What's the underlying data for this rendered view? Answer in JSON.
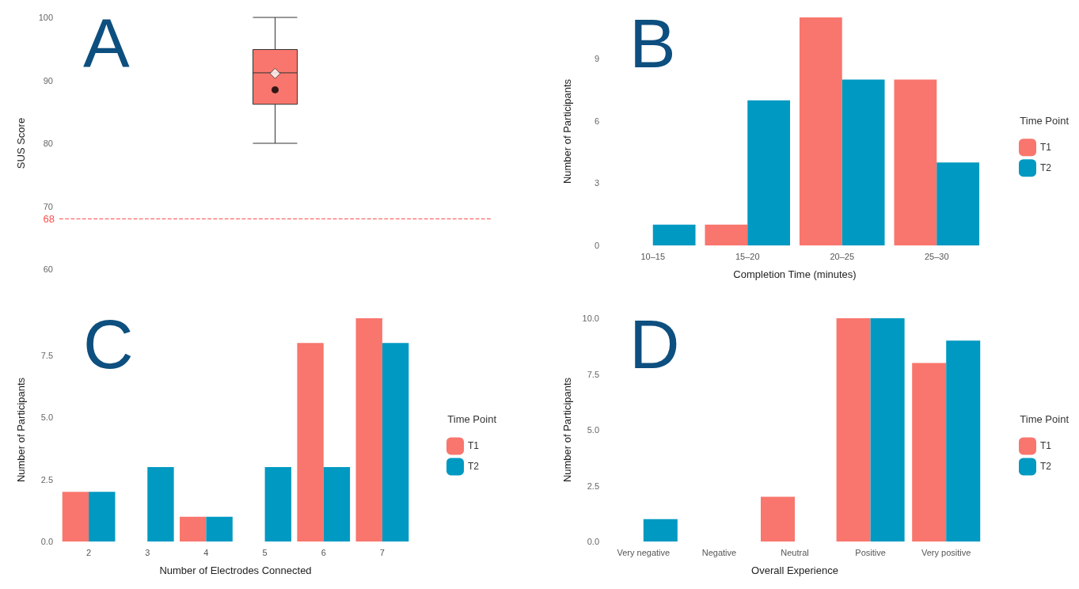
{
  "chart_data": [
    {
      "type": "box",
      "title": "A",
      "ylabel": "SUS Score",
      "categories": [
        null
      ],
      "tick_labels": "y",
      "grid": false,
      "legend": false,
      "boxes": [
        {
          "low": 80,
          "q1": 86.2,
          "median": 91.2,
          "q3": 94.9,
          "high": 100,
          "mean": 88.5
        }
      ],
      "color": "#f8766d",
      "series": [
        {
          "type": "scatter",
          "x": [
            null
          ],
          "values": [
            91.1
          ],
          "marker": "diamond",
          "color": "#ffffff"
        }
      ],
      "ylim": [
        60,
        100
      ],
      "yticks": [
        60,
        70,
        80,
        90,
        100
      ],
      "ref_lines": [
        {
          "axis": "y",
          "value": 68,
          "label": "68",
          "color": "#ff4d4d",
          "line_style": "dashed"
        }
      ]
    },
    {
      "type": "bar",
      "title": "B",
      "xlabel": "Completion Time (minutes)",
      "ylabel": "Number of Participants",
      "legend_title": "Time Point",
      "legend": "right",
      "grid": false,
      "categories": [
        "10–15",
        "15–20",
        "20–25",
        "25–30"
      ],
      "series": [
        {
          "name": "T1",
          "color": "#f8766d",
          "values": [
            null,
            1,
            11,
            8
          ]
        },
        {
          "name": "T2",
          "color": "#0099c2",
          "values": [
            1,
            7,
            8,
            4
          ]
        }
      ],
      "ylim": [
        0,
        11
      ],
      "yticks": [
        0,
        3,
        6,
        9
      ]
    },
    {
      "type": "bar",
      "title": "C",
      "xlabel": "Number of Electrodes Connected",
      "ylabel": "Number of Participants",
      "legend_title": "Time Point",
      "legend": "right",
      "grid": false,
      "categories": [
        "2",
        "3",
        "4",
        "5",
        "6",
        "7"
      ],
      "series": [
        {
          "name": "T1",
          "color": "#f8766d",
          "values": [
            2,
            null,
            1,
            null,
            8,
            9
          ]
        },
        {
          "name": "T2",
          "color": "#0099c2",
          "values": [
            2,
            3,
            1,
            3,
            3,
            8
          ]
        }
      ],
      "ylim": [
        0,
        9
      ],
      "yticks": [
        {
          "value": 0,
          "label": "0.0"
        },
        {
          "value": 2.5,
          "label": "2.5"
        },
        {
          "value": 5,
          "label": "5.0"
        },
        {
          "value": 7.5,
          "label": "7.5"
        }
      ]
    },
    {
      "type": "bar",
      "title": "D",
      "xlabel": "Overall Experience",
      "ylabel": "Number of Participants",
      "legend_title": "Time Point",
      "legend": "right",
      "grid": false,
      "categories": [
        "Very negative",
        "Negative",
        "Neutral",
        "Positive",
        "Very positive"
      ],
      "series": [
        {
          "name": "T1",
          "color": "#f8766d",
          "values": [
            null,
            null,
            2,
            10,
            8
          ]
        },
        {
          "name": "T2",
          "color": "#0099c2",
          "values": [
            1,
            null,
            null,
            10,
            9
          ]
        }
      ],
      "ylim": [
        0,
        10
      ],
      "yticks": [
        {
          "value": 0,
          "label": "0.0"
        },
        {
          "value": 2.5,
          "label": "2.5"
        },
        {
          "value": 5,
          "label": "5.0"
        },
        {
          "value": 7.5,
          "label": "7.5"
        },
        {
          "value": 10,
          "label": "10.0"
        }
      ]
    }
  ]
}
